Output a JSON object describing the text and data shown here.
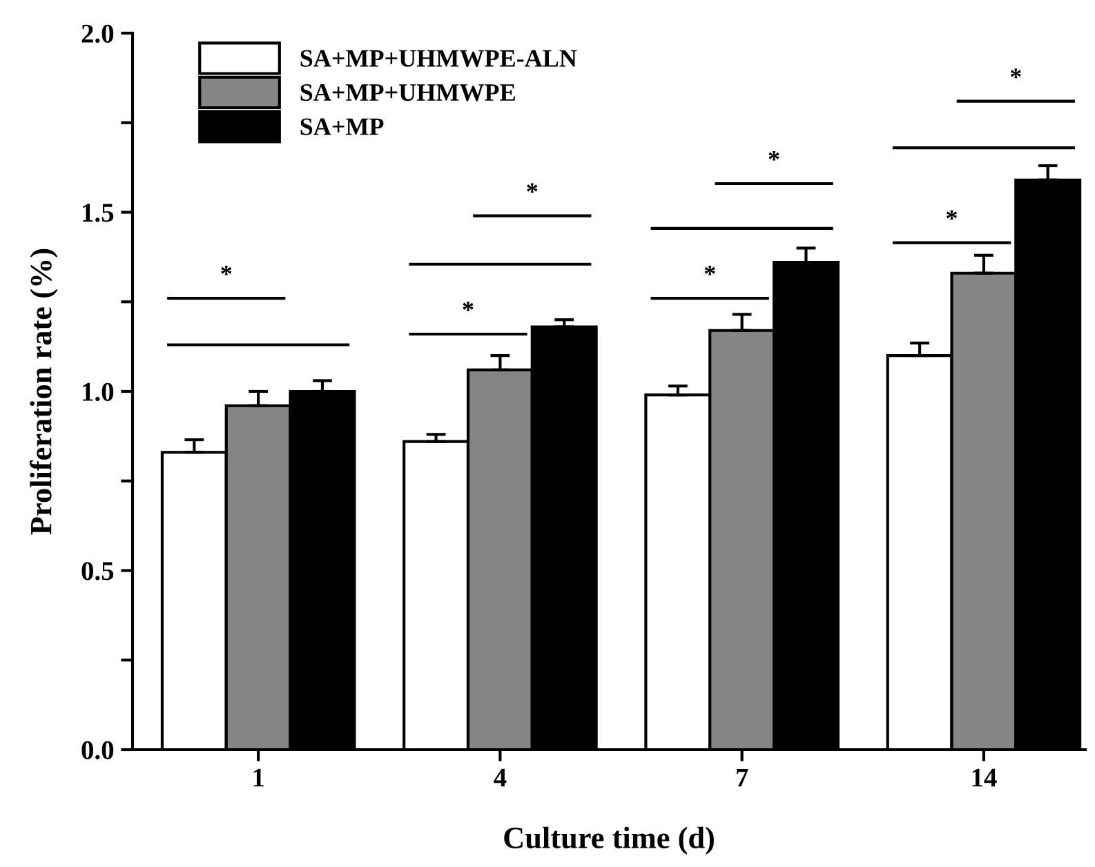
{
  "chart_data": {
    "type": "bar",
    "xlabel": "Culture time (d)",
    "ylabel": "Proliferation rate (%)",
    "categories": [
      "1",
      "4",
      "7",
      "14"
    ],
    "series": [
      {
        "name": "SA+MP+UHMWPE-ALN",
        "color": "#ffffff",
        "values": [
          0.83,
          0.86,
          0.99,
          1.1
        ],
        "errors": [
          0.035,
          0.02,
          0.025,
          0.035
        ]
      },
      {
        "name": "SA+MP+UHMWPE",
        "color": "#858585",
        "values": [
          0.96,
          1.06,
          1.17,
          1.33
        ],
        "errors": [
          0.04,
          0.04,
          0.045,
          0.05
        ]
      },
      {
        "name": "SA+MP",
        "color": "#000000",
        "values": [
          1.0,
          1.18,
          1.36,
          1.59
        ],
        "errors": [
          0.03,
          0.02,
          0.04,
          0.04
        ]
      }
    ],
    "ylim": [
      0,
      2.0
    ],
    "yticks": [
      {
        "value": 0,
        "label": "0.0"
      },
      {
        "value": 0.25,
        "label": null
      },
      0.5,
      {
        "value": 0.75,
        "label": null
      },
      {
        "value": 1,
        "label": "1.0"
      },
      {
        "value": 1.25,
        "label": null
      },
      1.5,
      {
        "value": 1.75,
        "label": null
      },
      {
        "value": 2,
        "label": "2.0"
      }
    ],
    "legend": "top left",
    "grid": false,
    "annotations": [
      "*",
      "*",
      "*",
      "*",
      "*",
      "*",
      "*"
    ]
  }
}
